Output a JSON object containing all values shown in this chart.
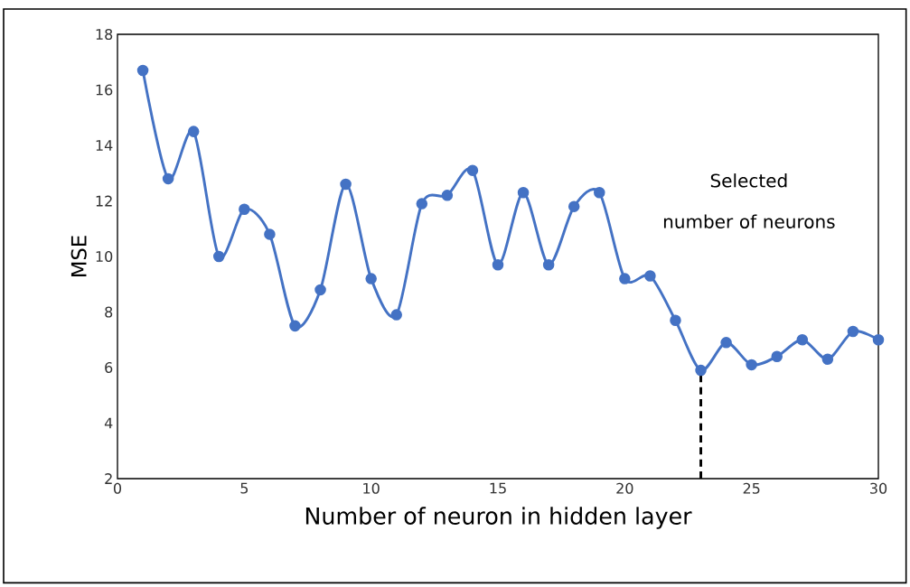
{
  "chart_data": {
    "type": "line",
    "xlabel": "Number of neuron in hidden layer",
    "ylabel": "MSE",
    "x": [
      1,
      2,
      3,
      4,
      5,
      6,
      7,
      8,
      9,
      10,
      11,
      12,
      13,
      14,
      15,
      16,
      17,
      18,
      19,
      20,
      21,
      22,
      23,
      24,
      25,
      26,
      27,
      28,
      29,
      30
    ],
    "series": [
      {
        "color": "#4472c4",
        "values": [
          16.7,
          12.8,
          14.5,
          10.0,
          11.7,
          10.8,
          7.5,
          8.8,
          12.6,
          9.2,
          7.9,
          11.9,
          12.2,
          13.1,
          9.7,
          12.3,
          9.7,
          11.8,
          12.3,
          9.2,
          9.3,
          7.7,
          5.9,
          6.9,
          6.1,
          6.4,
          7.0,
          6.3,
          7.3,
          7.0
        ]
      }
    ],
    "xlim": [
      0,
      30
    ],
    "xticks": [
      0,
      5,
      10,
      15,
      20,
      25,
      30
    ],
    "ylim": [
      2,
      18
    ],
    "yticks": [
      2,
      4,
      6,
      8,
      10,
      12,
      14,
      16,
      18
    ],
    "marker": "circle",
    "line_style": "solid",
    "grid": false,
    "ref_lines": [
      {
        "axis": "x",
        "value": 23,
        "label": "Selected number of neurons",
        "color": "#000000",
        "line_style": "dashed"
      }
    ]
  }
}
